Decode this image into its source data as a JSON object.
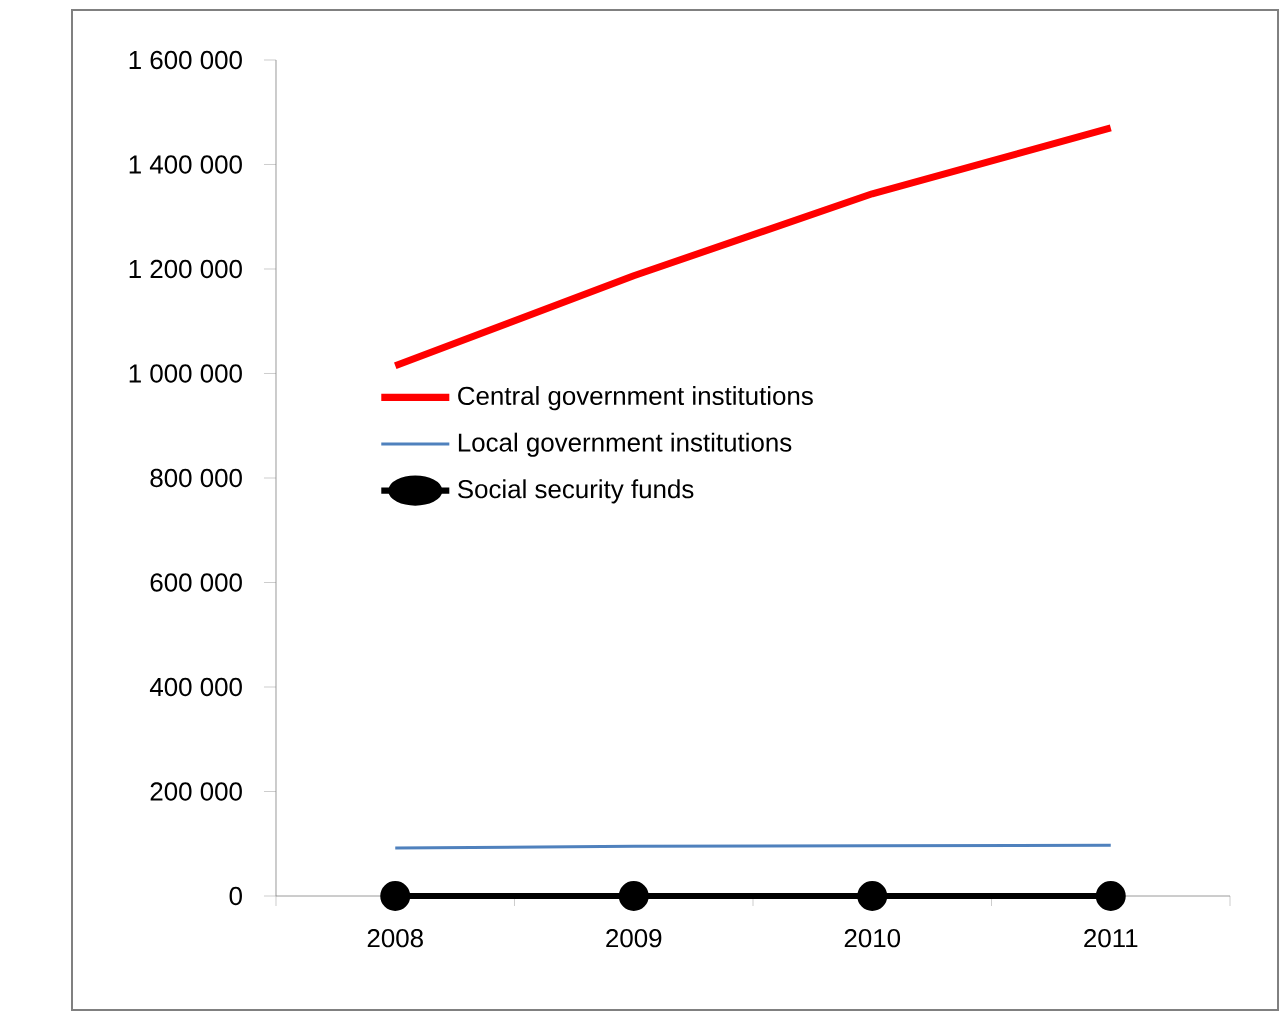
{
  "chart_data": {
    "type": "line",
    "categories": [
      "2008",
      "2009",
      "2010",
      "2011"
    ],
    "series": [
      {
        "name": "Central government institutions",
        "color": "#ff0000",
        "values": [
          1015000,
          1187000,
          1344000,
          1470000
        ],
        "marker": "none"
      },
      {
        "name": "Local government institutions",
        "color": "#4f81bd",
        "values": [
          92000,
          95000,
          96000,
          97000
        ],
        "marker": "none"
      },
      {
        "name": "Social security funds",
        "color": "#000000",
        "values": [
          0,
          0,
          0,
          0
        ],
        "marker": "circle"
      }
    ],
    "ylim": [
      0,
      1600000
    ],
    "yticks": [
      {
        "value": 0,
        "label": "0"
      },
      {
        "value": 200000,
        "label": "200 000"
      },
      {
        "value": 400000,
        "label": "400 000"
      },
      {
        "value": 600000,
        "label": "600 000"
      },
      {
        "value": 800000,
        "label": "800 000"
      },
      {
        "value": 1000000,
        "label": "1 000 000"
      },
      {
        "value": 1200000,
        "label": "1 200 000"
      },
      {
        "value": 1400000,
        "label": "1 400 000"
      },
      {
        "value": 1600000,
        "label": "1 600 000"
      }
    ],
    "legend": "left",
    "grid": false
  }
}
